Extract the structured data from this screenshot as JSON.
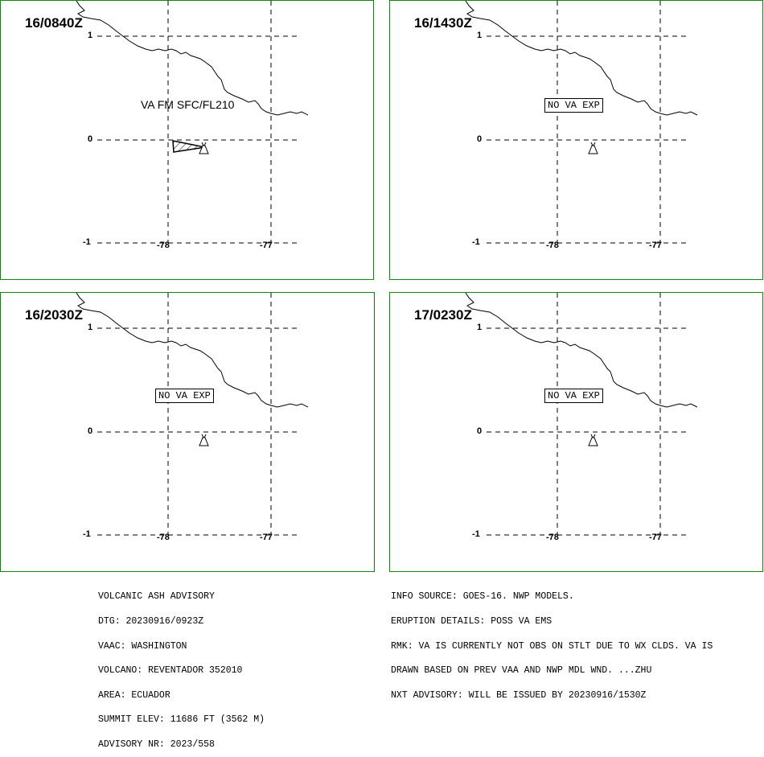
{
  "panels": [
    {
      "time": "16/0840Z",
      "va_label": "VA FM SFC/FL210",
      "status_box": ""
    },
    {
      "time": "16/1430Z",
      "va_label": "",
      "status_box": "NO VA EXP"
    },
    {
      "time": "16/2030Z",
      "va_label": "",
      "status_box": "NO VA EXP"
    },
    {
      "time": "17/0230Z",
      "va_label": "",
      "status_box": "NO VA EXP"
    }
  ],
  "axes": {
    "lat_labels": [
      "1",
      "0",
      "-1"
    ],
    "lon_labels": [
      "-78",
      "-77"
    ]
  },
  "advisory_left": [
    "VOLCANIC ASH ADVISORY",
    "DTG: 20230916/0923Z",
    "VAAC: WASHINGTON",
    "VOLCANO: REVENTADOR 352010",
    "AREA: ECUADOR",
    "SUMMIT ELEV: 11686 FT (3562 M)",
    "ADVISORY NR: 2023/558"
  ],
  "advisory_right": [
    "INFO SOURCE: GOES-16. NWP MODELS.",
    "ERUPTION DETAILS: POSS VA EMS",
    "RMK: VA IS CURRENTLY NOT OBS ON STLT DUE TO WX CLDS. VA IS",
    "DRAWN BASED ON PREV VAA AND NWP MDL WND. ...ZHU",
    "NXT ADVISORY: WILL BE ISSUED BY 20230916/1530Z"
  ],
  "colors": {
    "panel_border": "#0a8a0a",
    "lines": "#000000",
    "background": "#ffffff"
  },
  "icons": {
    "volcano": "volcano-icon",
    "ash_area": "hatched-ash-polygon"
  }
}
